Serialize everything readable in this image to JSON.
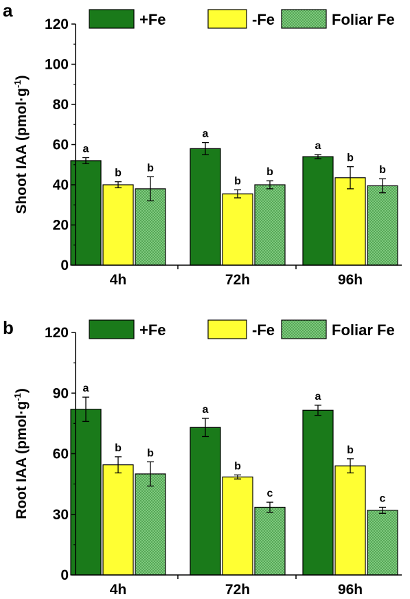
{
  "colors": {
    "plusFe": "#1a7a1a",
    "minusFe": "#ffff33",
    "foliar_base": "#7ec97e",
    "foliar_dot": "#3a8f3a"
  },
  "legend": [
    "+Fe",
    "-Fe",
    "Foliar Fe"
  ],
  "chart_data": [
    {
      "panel": "a",
      "type": "bar",
      "ylabel_main": "Shoot IAA (pmol·g",
      "ylabel_sup": "-1",
      "ylabel_close": ")",
      "ylim": [
        0,
        120
      ],
      "yticks": [
        0,
        20,
        40,
        60,
        80,
        100,
        120
      ],
      "categories": [
        "4h",
        "72h",
        "96h"
      ],
      "series": [
        {
          "name": "+Fe",
          "values": [
            52,
            58,
            54
          ],
          "errors": [
            1.5,
            3,
            1
          ],
          "letters": [
            "a",
            "a",
            "a"
          ]
        },
        {
          "name": "-Fe",
          "values": [
            40,
            35.5,
            43.5
          ],
          "errors": [
            1.5,
            2,
            5.5
          ],
          "letters": [
            "b",
            "b",
            "b"
          ]
        },
        {
          "name": "Foliar Fe",
          "values": [
            38,
            40,
            39.5
          ],
          "errors": [
            6,
            2,
            3.5
          ],
          "letters": [
            "b",
            "b",
            "b"
          ]
        }
      ]
    },
    {
      "panel": "b",
      "type": "bar",
      "ylabel_main": "Root IAA (pmol·g",
      "ylabel_sup": "-1",
      "ylabel_close": ")",
      "ylim": [
        0,
        120
      ],
      "yticks": [
        0,
        30,
        60,
        90,
        120
      ],
      "categories": [
        "4h",
        "72h",
        "96h"
      ],
      "series": [
        {
          "name": "+Fe",
          "values": [
            82,
            73,
            81.5
          ],
          "errors": [
            6,
            4.5,
            2.5
          ],
          "letters": [
            "a",
            "a",
            "a"
          ]
        },
        {
          "name": "-Fe",
          "values": [
            54.5,
            48.5,
            54
          ],
          "errors": [
            4,
            1,
            3.5
          ],
          "letters": [
            "b",
            "b",
            "b"
          ]
        },
        {
          "name": "Foliar Fe",
          "values": [
            50,
            33.5,
            32
          ],
          "errors": [
            6,
            2.5,
            1.5
          ],
          "letters": [
            "b",
            "c",
            "c"
          ]
        }
      ]
    }
  ]
}
